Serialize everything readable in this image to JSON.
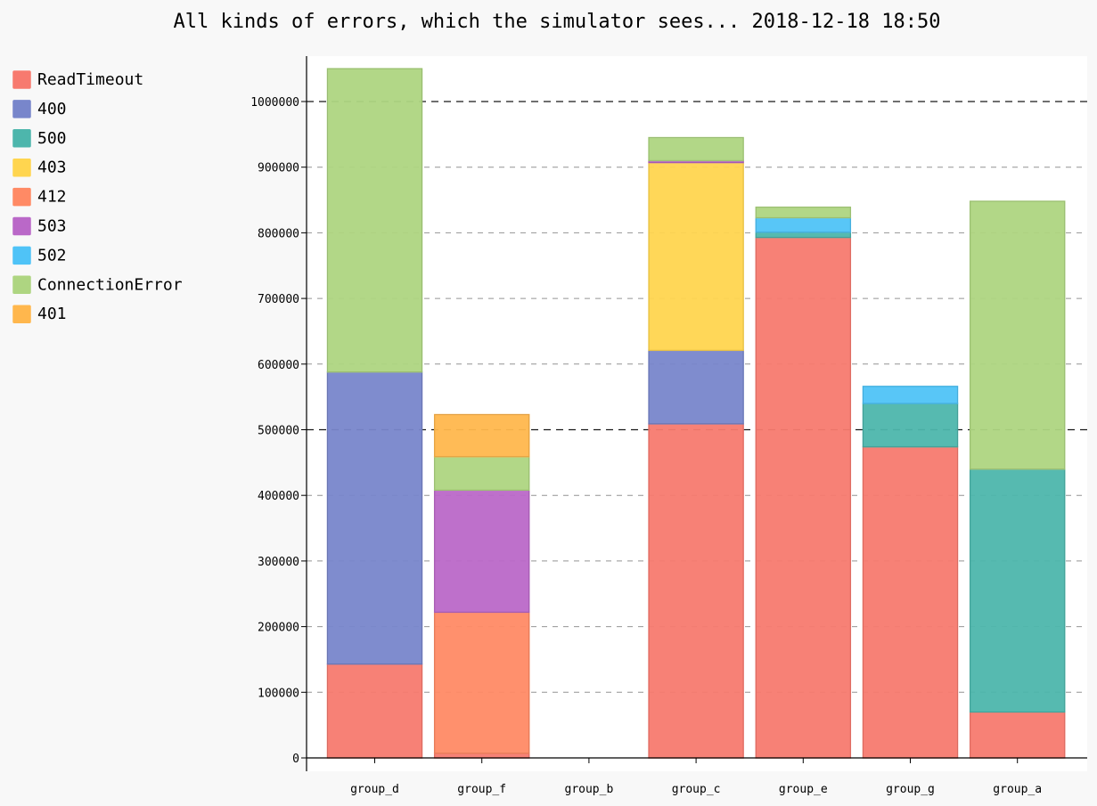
{
  "chart_data": {
    "type": "bar",
    "stacked": true,
    "title": "All kinds of errors, which the simulator sees... 2018-12-18 18:50",
    "xlabel": "",
    "ylabel": "",
    "ylim": [
      0,
      1070000
    ],
    "yticks": [
      0,
      100000,
      200000,
      300000,
      400000,
      500000,
      600000,
      700000,
      800000,
      900000,
      1000000
    ],
    "major_gridlines": [
      500000,
      1000000
    ],
    "grid": true,
    "legend_position": "left",
    "categories": [
      "group_d",
      "group_f",
      "group_b",
      "group_c",
      "group_e",
      "group_g",
      "group_a"
    ],
    "series": [
      {
        "name": "ReadTimeout",
        "color": "#f77a6f",
        "values": [
          143000,
          7000,
          0,
          509000,
          793000,
          474000,
          70000
        ]
      },
      {
        "name": "400",
        "color": "#7886cb",
        "values": [
          445000,
          0,
          0,
          112000,
          0,
          0,
          0
        ]
      },
      {
        "name": "500",
        "color": "#4db6ac",
        "values": [
          0,
          0,
          0,
          0,
          8000,
          66000,
          370000
        ]
      },
      {
        "name": "403",
        "color": "#ffd54f",
        "values": [
          0,
          0,
          0,
          286000,
          0,
          0,
          0
        ]
      },
      {
        "name": "412",
        "color": "#ff8a65",
        "values": [
          0,
          215000,
          0,
          0,
          0,
          0,
          0
        ]
      },
      {
        "name": "503",
        "color": "#ba68c8",
        "values": [
          0,
          186000,
          0,
          3000,
          0,
          0,
          0
        ]
      },
      {
        "name": "502",
        "color": "#4fc3f7",
        "values": [
          0,
          0,
          0,
          0,
          22000,
          26000,
          0
        ]
      },
      {
        "name": "ConnectionError",
        "color": "#aed581",
        "values": [
          462000,
          51000,
          0,
          35000,
          16000,
          0,
          408000
        ]
      },
      {
        "name": "401",
        "color": "#ffb74d",
        "values": [
          0,
          64000,
          0,
          0,
          0,
          0,
          0
        ]
      }
    ]
  }
}
